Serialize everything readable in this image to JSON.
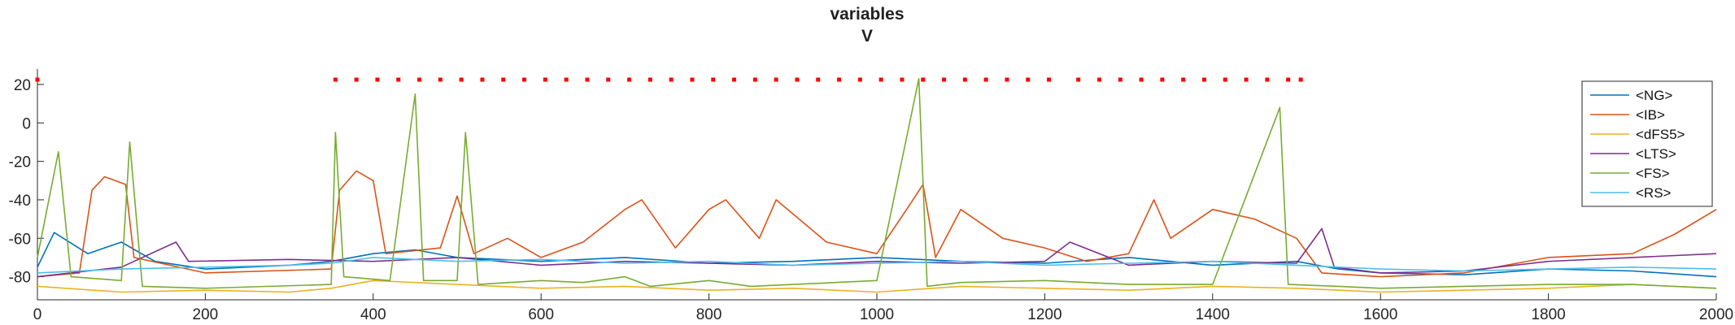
{
  "chart_data": {
    "type": "line",
    "title": "variables",
    "subtitle": "V",
    "xlabel": "",
    "ylabel": "",
    "xlim": [
      0,
      2000
    ],
    "ylim": [
      -92,
      28
    ],
    "xticks": [
      "0",
      "200",
      "400",
      "600",
      "800",
      "1000",
      "1200",
      "1400",
      "1600",
      "1800",
      "2000"
    ],
    "yticks": [
      "20",
      "0",
      "-20",
      "-40",
      "-60",
      "-80"
    ],
    "grid": false,
    "legend_position": "top-right",
    "series": [
      {
        "name": "<NG>",
        "color": "#0072BD",
        "points": [
          [
            0,
            -75
          ],
          [
            20,
            -57
          ],
          [
            60,
            -68
          ],
          [
            100,
            -62
          ],
          [
            140,
            -72
          ],
          [
            200,
            -76
          ],
          [
            300,
            -74
          ],
          [
            350,
            -72
          ],
          [
            400,
            -68
          ],
          [
            450,
            -66
          ],
          [
            500,
            -70
          ],
          [
            600,
            -72
          ],
          [
            700,
            -70
          ],
          [
            800,
            -73
          ],
          [
            900,
            -72
          ],
          [
            1000,
            -70
          ],
          [
            1100,
            -72
          ],
          [
            1200,
            -73
          ],
          [
            1300,
            -70
          ],
          [
            1400,
            -74
          ],
          [
            1500,
            -72
          ],
          [
            1550,
            -76
          ],
          [
            1600,
            -78
          ],
          [
            1700,
            -79
          ],
          [
            1800,
            -76
          ],
          [
            1900,
            -77
          ],
          [
            2000,
            -80
          ]
        ]
      },
      {
        "name": "<IB>",
        "color": "#D95319",
        "points": [
          [
            0,
            -80
          ],
          [
            50,
            -78
          ],
          [
            65,
            -35
          ],
          [
            80,
            -28
          ],
          [
            105,
            -32
          ],
          [
            115,
            -70
          ],
          [
            200,
            -78
          ],
          [
            350,
            -76
          ],
          [
            360,
            -35
          ],
          [
            380,
            -25
          ],
          [
            400,
            -30
          ],
          [
            415,
            -68
          ],
          [
            480,
            -65
          ],
          [
            500,
            -38
          ],
          [
            520,
            -68
          ],
          [
            560,
            -60
          ],
          [
            600,
            -70
          ],
          [
            650,
            -62
          ],
          [
            700,
            -45
          ],
          [
            720,
            -40
          ],
          [
            760,
            -65
          ],
          [
            800,
            -45
          ],
          [
            820,
            -40
          ],
          [
            860,
            -60
          ],
          [
            880,
            -40
          ],
          [
            940,
            -62
          ],
          [
            1000,
            -68
          ],
          [
            1040,
            -42
          ],
          [
            1055,
            -32
          ],
          [
            1070,
            -70
          ],
          [
            1100,
            -45
          ],
          [
            1150,
            -60
          ],
          [
            1200,
            -65
          ],
          [
            1250,
            -72
          ],
          [
            1300,
            -68
          ],
          [
            1330,
            -40
          ],
          [
            1350,
            -60
          ],
          [
            1400,
            -45
          ],
          [
            1450,
            -50
          ],
          [
            1500,
            -60
          ],
          [
            1530,
            -78
          ],
          [
            1600,
            -80
          ],
          [
            1700,
            -78
          ],
          [
            1800,
            -70
          ],
          [
            1900,
            -68
          ],
          [
            1950,
            -58
          ],
          [
            2000,
            -45
          ]
        ]
      },
      {
        "name": "<dFS5>",
        "color": "#EDB120",
        "points": [
          [
            0,
            -85
          ],
          [
            100,
            -88
          ],
          [
            200,
            -87
          ],
          [
            300,
            -88
          ],
          [
            350,
            -86
          ],
          [
            400,
            -82
          ],
          [
            500,
            -84
          ],
          [
            600,
            -86
          ],
          [
            700,
            -85
          ],
          [
            800,
            -87
          ],
          [
            900,
            -86
          ],
          [
            1000,
            -88
          ],
          [
            1100,
            -85
          ],
          [
            1200,
            -86
          ],
          [
            1300,
            -87
          ],
          [
            1400,
            -85
          ],
          [
            1500,
            -86
          ],
          [
            1600,
            -88
          ],
          [
            1700,
            -87
          ],
          [
            1800,
            -86
          ],
          [
            1900,
            -84
          ],
          [
            2000,
            -86
          ]
        ]
      },
      {
        "name": "<LTS>",
        "color": "#7E2F8E",
        "points": [
          [
            0,
            -80
          ],
          [
            100,
            -75
          ],
          [
            165,
            -62
          ],
          [
            180,
            -72
          ],
          [
            300,
            -71
          ],
          [
            400,
            -72
          ],
          [
            500,
            -70
          ],
          [
            600,
            -74
          ],
          [
            700,
            -72
          ],
          [
            800,
            -73
          ],
          [
            900,
            -74
          ],
          [
            1000,
            -72
          ],
          [
            1100,
            -73
          ],
          [
            1200,
            -72
          ],
          [
            1230,
            -62
          ],
          [
            1300,
            -74
          ],
          [
            1400,
            -72
          ],
          [
            1500,
            -73
          ],
          [
            1530,
            -55
          ],
          [
            1545,
            -75
          ],
          [
            1600,
            -78
          ],
          [
            1700,
            -77
          ],
          [
            1800,
            -72
          ],
          [
            1900,
            -70
          ],
          [
            2000,
            -68
          ]
        ]
      },
      {
        "name": "<FS>",
        "color": "#77AC30",
        "points": [
          [
            0,
            -70
          ],
          [
            25,
            -15
          ],
          [
            40,
            -80
          ],
          [
            100,
            -82
          ],
          [
            110,
            -10
          ],
          [
            125,
            -85
          ],
          [
            200,
            -86
          ],
          [
            350,
            -84
          ],
          [
            355,
            -5
          ],
          [
            365,
            -80
          ],
          [
            420,
            -82
          ],
          [
            450,
            15
          ],
          [
            460,
            -82
          ],
          [
            500,
            -82
          ],
          [
            510,
            -5
          ],
          [
            525,
            -84
          ],
          [
            600,
            -82
          ],
          [
            650,
            -83
          ],
          [
            700,
            -80
          ],
          [
            730,
            -85
          ],
          [
            800,
            -82
          ],
          [
            850,
            -85
          ],
          [
            900,
            -84
          ],
          [
            1000,
            -82
          ],
          [
            1050,
            23
          ],
          [
            1060,
            -85
          ],
          [
            1100,
            -83
          ],
          [
            1200,
            -82
          ],
          [
            1300,
            -84
          ],
          [
            1400,
            -84
          ],
          [
            1480,
            8
          ],
          [
            1490,
            -84
          ],
          [
            1550,
            -85
          ],
          [
            1600,
            -86
          ],
          [
            1800,
            -84
          ],
          [
            1900,
            -84
          ],
          [
            2000,
            -86
          ]
        ]
      },
      {
        "name": "<RS>",
        "color": "#4DBEEE",
        "points": [
          [
            0,
            -78
          ],
          [
            100,
            -76
          ],
          [
            200,
            -75
          ],
          [
            300,
            -74
          ],
          [
            350,
            -73
          ],
          [
            400,
            -70
          ],
          [
            500,
            -72
          ],
          [
            600,
            -71
          ],
          [
            700,
            -73
          ],
          [
            800,
            -72
          ],
          [
            900,
            -74
          ],
          [
            1000,
            -73
          ],
          [
            1100,
            -72
          ],
          [
            1200,
            -74
          ],
          [
            1300,
            -73
          ],
          [
            1400,
            -72
          ],
          [
            1500,
            -74
          ],
          [
            1600,
            -76
          ],
          [
            1700,
            -77
          ],
          [
            1800,
            -76
          ],
          [
            1900,
            -75
          ],
          [
            2000,
            -76
          ]
        ]
      }
    ],
    "markers": {
      "name": "",
      "color": "#FF0000",
      "y": 22.5,
      "x": [
        0,
        355,
        380,
        405,
        430,
        455,
        480,
        505,
        530,
        555,
        580,
        605,
        630,
        655,
        680,
        705,
        730,
        755,
        780,
        805,
        830,
        855,
        880,
        905,
        930,
        955,
        980,
        1005,
        1030,
        1055,
        1080,
        1105,
        1130,
        1155,
        1180,
        1205,
        1240,
        1265,
        1290,
        1315,
        1340,
        1365,
        1390,
        1415,
        1440,
        1465,
        1490,
        1505
      ]
    }
  }
}
